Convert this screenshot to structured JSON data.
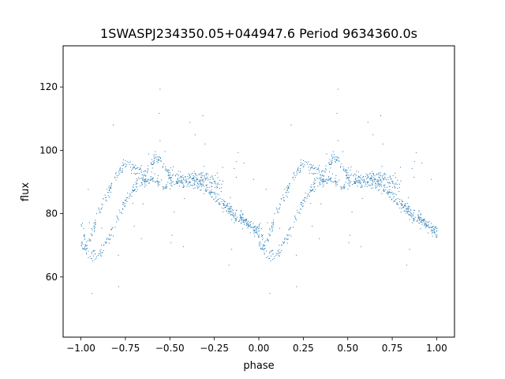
{
  "chart_data": {
    "type": "scatter",
    "title": "1SWASPJ234350.05+044947.6 Period 9634360.0s",
    "xlabel": "phase",
    "ylabel": "flux",
    "xlim": [
      -1.1,
      1.1
    ],
    "ylim": [
      41,
      133
    ],
    "xticks": [
      -1.0,
      -0.75,
      -0.5,
      -0.25,
      0.0,
      0.25,
      0.5,
      0.75,
      1.0
    ],
    "xtick_labels": [
      "−1.00",
      "−0.75",
      "−0.50",
      "−0.25",
      "0.00",
      "0.25",
      "0.50",
      "0.75",
      "1.00"
    ],
    "yticks": [
      60,
      80,
      100,
      120
    ],
    "ytick_labels": [
      "60",
      "80",
      "100",
      "120"
    ],
    "grid": false,
    "marker_color": "#1f77b4",
    "series": [
      {
        "curve_upper": [
          [
            0.0,
            76
          ],
          [
            0.02,
            72
          ],
          [
            0.04,
            70
          ],
          [
            0.06,
            74
          ],
          [
            0.08,
            78
          ],
          [
            0.1,
            81
          ],
          [
            0.12,
            84
          ],
          [
            0.15,
            87
          ],
          [
            0.18,
            90
          ],
          [
            0.21,
            93
          ],
          [
            0.24,
            95
          ],
          [
            0.27,
            96
          ],
          [
            0.3,
            94
          ],
          [
            0.33,
            93
          ],
          [
            0.36,
            93
          ],
          [
            0.39,
            95
          ],
          [
            0.42,
            98
          ],
          [
            0.45,
            96
          ],
          [
            0.48,
            94
          ],
          [
            0.52,
            92
          ],
          [
            0.56,
            91
          ],
          [
            0.6,
            92
          ],
          [
            0.64,
            92
          ],
          [
            0.68,
            92
          ],
          [
            0.72,
            91
          ],
          [
            0.76,
            89
          ],
          [
            0.8,
            89
          ]
        ],
        "curve_lower": [
          [
            0.0,
            71
          ],
          [
            0.03,
            68
          ],
          [
            0.06,
            67
          ],
          [
            0.08,
            66
          ],
          [
            0.1,
            67
          ],
          [
            0.12,
            69
          ],
          [
            0.15,
            72
          ],
          [
            0.18,
            75
          ],
          [
            0.21,
            79
          ],
          [
            0.24,
            83
          ],
          [
            0.27,
            86
          ],
          [
            0.3,
            88
          ],
          [
            0.33,
            90
          ],
          [
            0.36,
            91
          ],
          [
            0.4,
            91
          ],
          [
            0.44,
            90
          ],
          [
            0.48,
            89
          ],
          [
            0.52,
            90
          ],
          [
            0.56,
            90
          ],
          [
            0.6,
            90
          ],
          [
            0.64,
            90
          ],
          [
            0.68,
            89
          ],
          [
            0.72,
            87
          ],
          [
            0.76,
            85
          ],
          [
            0.8,
            83
          ],
          [
            0.84,
            81
          ],
          [
            0.88,
            79
          ],
          [
            0.92,
            78
          ],
          [
            0.96,
            76
          ],
          [
            1.0,
            74
          ]
        ]
      }
    ]
  }
}
